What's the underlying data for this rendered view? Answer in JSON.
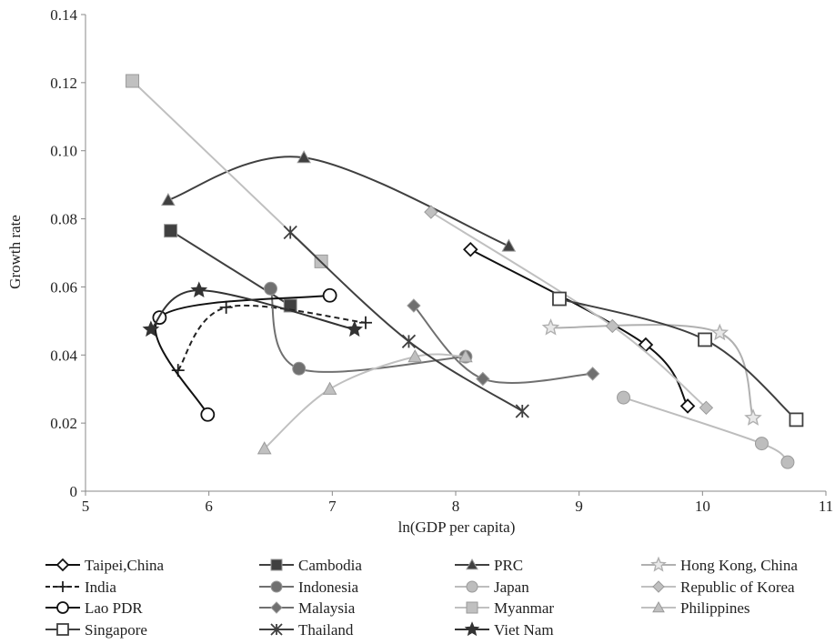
{
  "chart_data": {
    "type": "line",
    "title": "",
    "xlabel": "ln(GDP per capita)",
    "ylabel": "Growth rate",
    "xlim": [
      5,
      11
    ],
    "ylim": [
      0,
      0.14
    ],
    "x_ticks": [
      "5",
      "6",
      "7",
      "8",
      "9",
      "10",
      "11"
    ],
    "y_ticks": [
      "0",
      "0.02",
      "0.04",
      "0.06",
      "0.08",
      "0.10",
      "0.12",
      "0.14"
    ],
    "grid": false,
    "smooth_lines": true,
    "legend_position": "bottom",
    "series": [
      {
        "name": "Taipei,China",
        "marker": "diamond-open",
        "color": "#111111",
        "dash": false,
        "points": [
          [
            8.12,
            0.071
          ],
          [
            9.54,
            0.043
          ],
          [
            9.88,
            0.025
          ]
        ]
      },
      {
        "name": "Cambodia",
        "marker": "square-filled",
        "color": "#404040",
        "dash": false,
        "points": [
          [
            5.69,
            0.0765
          ],
          [
            6.66,
            0.0545
          ]
        ]
      },
      {
        "name": "PRC",
        "marker": "triangle-filled",
        "color": "#404040",
        "dash": false,
        "points": [
          [
            5.67,
            0.0855
          ],
          [
            6.77,
            0.098
          ],
          [
            8.43,
            0.072
          ]
        ]
      },
      {
        "name": "Hong Kong, China",
        "marker": "star-open",
        "color": "#b0b0b0",
        "dash": false,
        "points": [
          [
            8.77,
            0.048
          ],
          [
            10.14,
            0.0465
          ],
          [
            10.41,
            0.0215
          ]
        ]
      },
      {
        "name": "India",
        "marker": "plus",
        "color": "#222222",
        "dash": true,
        "points": [
          [
            5.75,
            0.0355
          ],
          [
            6.14,
            0.054
          ],
          [
            7.27,
            0.0495
          ]
        ]
      },
      {
        "name": "Indonesia",
        "marker": "circle-filled",
        "color": "#707070",
        "dash": false,
        "points": [
          [
            6.5,
            0.0595
          ],
          [
            6.73,
            0.036
          ],
          [
            8.08,
            0.0395
          ]
        ]
      },
      {
        "name": "Japan",
        "marker": "circle-filled",
        "color": "#bdbdbd",
        "dash": false,
        "points": [
          [
            9.36,
            0.0275
          ],
          [
            10.48,
            0.014
          ],
          [
            10.69,
            0.0085
          ]
        ]
      },
      {
        "name": "Republic of Korea",
        "marker": "diamond-filled",
        "color": "#c0c0c0",
        "dash": false,
        "points": [
          [
            7.8,
            0.082
          ],
          [
            9.27,
            0.0485
          ],
          [
            10.03,
            0.0245
          ]
        ]
      },
      {
        "name": "Lao PDR",
        "marker": "circle-open",
        "color": "#111111",
        "dash": false,
        "points": [
          [
            5.99,
            0.0225
          ],
          [
            5.6,
            0.051
          ],
          [
            6.98,
            0.0575
          ]
        ]
      },
      {
        "name": "Malaysia",
        "marker": "diamond-filled",
        "color": "#707070",
        "dash": false,
        "points": [
          [
            7.66,
            0.0545
          ],
          [
            8.22,
            0.033
          ],
          [
            9.11,
            0.0345
          ]
        ]
      },
      {
        "name": "Myanmar",
        "marker": "square-filled",
        "color": "#c0c0c0",
        "dash": false,
        "points": [
          [
            5.38,
            0.1205
          ],
          [
            6.91,
            0.0675
          ]
        ]
      },
      {
        "name": "Philippines",
        "marker": "triangle-filled",
        "color": "#c0c0c0",
        "dash": false,
        "points": [
          [
            6.45,
            0.0125
          ],
          [
            6.98,
            0.03
          ],
          [
            7.67,
            0.0395
          ],
          [
            8.08,
            0.0395
          ]
        ]
      },
      {
        "name": "Singapore",
        "marker": "square-open",
        "color": "#404040",
        "dash": false,
        "points": [
          [
            8.84,
            0.0565
          ],
          [
            10.02,
            0.0445
          ],
          [
            10.76,
            0.021
          ]
        ]
      },
      {
        "name": "Thailand",
        "marker": "asterisk",
        "color": "#404040",
        "dash": false,
        "points": [
          [
            6.66,
            0.076
          ],
          [
            7.62,
            0.044
          ],
          [
            8.54,
            0.0235
          ]
        ]
      },
      {
        "name": "Viet Nam",
        "marker": "star-filled",
        "color": "#333333",
        "dash": false,
        "points": [
          [
            5.53,
            0.0475
          ],
          [
            5.92,
            0.059
          ],
          [
            7.18,
            0.0475
          ]
        ]
      }
    ]
  }
}
